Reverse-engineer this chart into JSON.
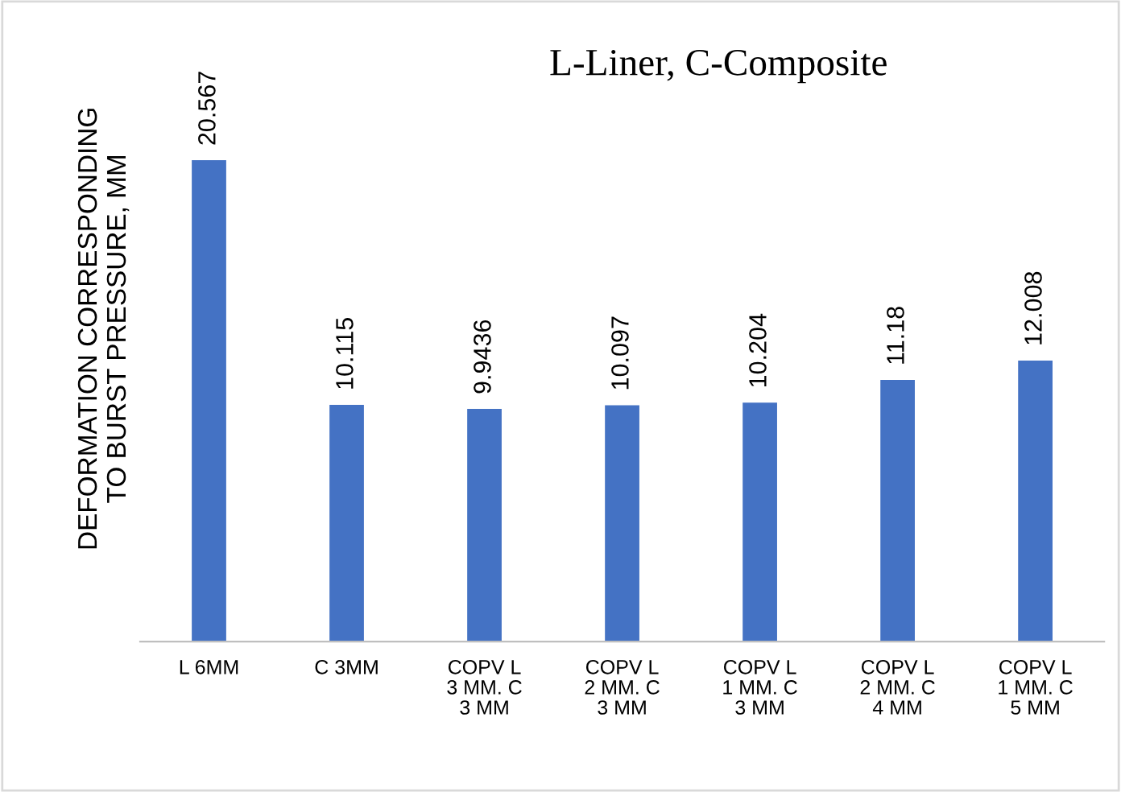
{
  "chart_data": {
    "type": "bar",
    "title": "L-Liner, C-Composite",
    "ylabel": "DEFORMATION CORRESPONDING\nTO BURST PRESSURE, MM",
    "categories": [
      "L 6MM",
      "C 3MM",
      "COPV L\n3 MM. C\n3 MM",
      "COPV L\n2 MM. C\n3 MM",
      "COPV L\n1 MM. C\n3 MM",
      "COPV L\n2 MM. C\n4 MM",
      "COPV L\n1 MM. C\n5 MM"
    ],
    "values": [
      20.567,
      10.115,
      9.9436,
      10.097,
      10.204,
      11.18,
      12.008
    ],
    "color": "#4472c4",
    "data_labels": true,
    "grid": false,
    "legend": false
  }
}
